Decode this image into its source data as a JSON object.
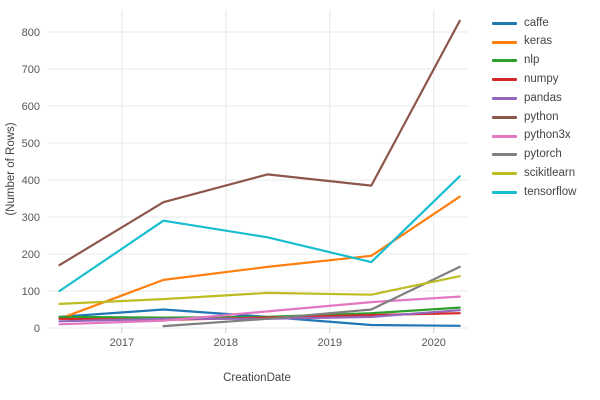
{
  "chart_data": {
    "type": "line",
    "x": [
      2016.4,
      2017.4,
      2018.4,
      2019.4,
      2020.25
    ],
    "series": [
      {
        "name": "caffe",
        "color": "#1f77b4",
        "values": [
          30,
          50,
          30,
          8,
          6
        ]
      },
      {
        "name": "keras",
        "color": "#ff7f0e",
        "values": [
          25,
          130,
          165,
          195,
          355
        ]
      },
      {
        "name": "nlp",
        "color": "#2ca02c",
        "values": [
          30,
          28,
          30,
          40,
          55
        ]
      },
      {
        "name": "numpy",
        "color": "#d62728",
        "values": [
          25,
          22,
          28,
          35,
          40
        ]
      },
      {
        "name": "pandas",
        "color": "#9467bd",
        "values": [
          18,
          25,
          25,
          30,
          48
        ]
      },
      {
        "name": "python",
        "color": "#8c564b",
        "values": [
          170,
          340,
          415,
          385,
          830
        ]
      },
      {
        "name": "python3x",
        "color": "#e377c2",
        "values": [
          10,
          20,
          45,
          70,
          85
        ]
      },
      {
        "name": "pytorch",
        "color": "#7f7f7f",
        "values": [
          null,
          5,
          25,
          50,
          165
        ]
      },
      {
        "name": "scikitlearn",
        "color": "#bcbd22",
        "values": [
          65,
          78,
          95,
          90,
          140
        ]
      },
      {
        "name": "tensorflow",
        "color": "#17becf",
        "values": [
          100,
          290,
          245,
          178,
          410
        ]
      }
    ],
    "title": "",
    "xlabel": "CreationDate",
    "ylabel": "(Number of Rows)",
    "xticks": [
      2017,
      2018,
      2019,
      2020
    ],
    "yticks": [
      0,
      100,
      200,
      300,
      400,
      500,
      600,
      700,
      800
    ],
    "xlim": [
      2016.28,
      2020.33
    ],
    "ylim": [
      0,
      860
    ],
    "grid": true,
    "legend_position": "right",
    "grid_color": "#e8e8e8",
    "tick_color": "#53565a"
  }
}
